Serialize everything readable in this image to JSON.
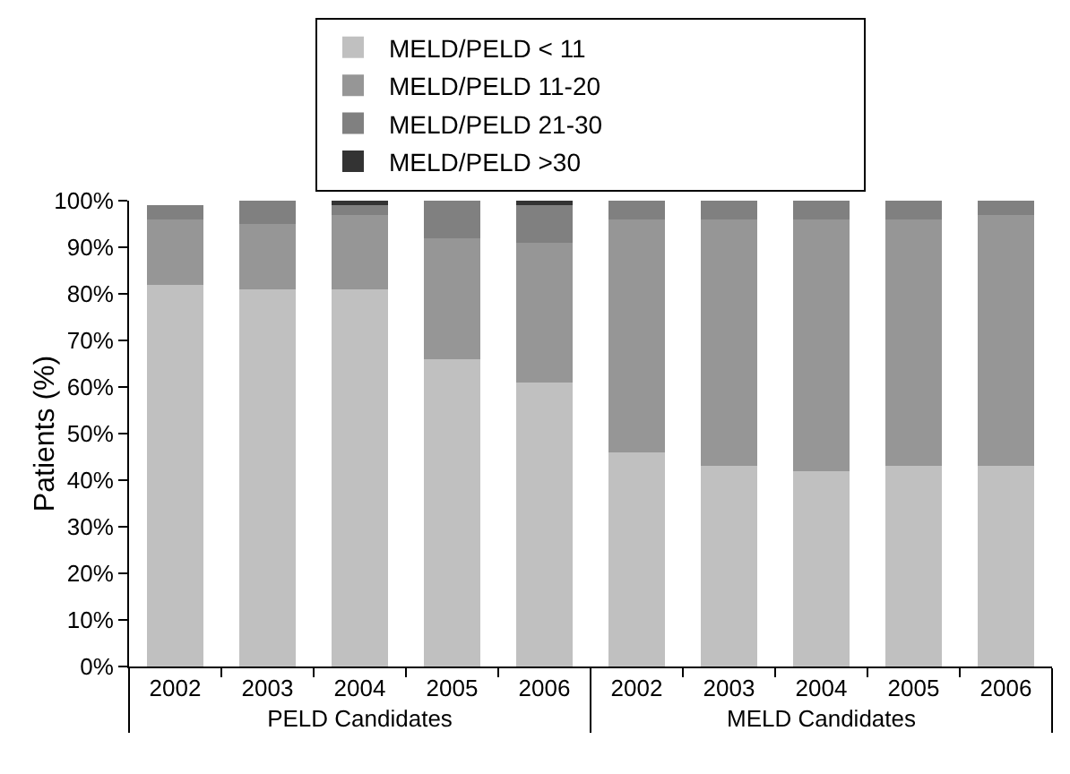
{
  "chart_data": {
    "type": "bar",
    "stacked": true,
    "ylabel": "Patients (%)",
    "categories": [
      "2002",
      "2003",
      "2004",
      "2005",
      "2006",
      "2002",
      "2003",
      "2004",
      "2005",
      "2006"
    ],
    "annotations": [
      "PELD Candidates",
      "MELD Candidates"
    ],
    "series": [
      {
        "name": "MELD/PELD < 11",
        "color": "#c0c0c0",
        "values": [
          82,
          81,
          81,
          66,
          61,
          46,
          43,
          42,
          43,
          43
        ]
      },
      {
        "name": "MELD/PELD 11-20",
        "color": "#969696",
        "values": [
          14,
          14,
          16,
          26,
          30,
          50,
          53,
          54,
          53,
          54
        ]
      },
      {
        "name": "MELD/PELD 21-30",
        "color": "#808080",
        "values": [
          3,
          5,
          2,
          8,
          8,
          4,
          4,
          4,
          4,
          3
        ]
      },
      {
        "name": "MELD/PELD >30",
        "color": "#333333",
        "values": [
          0,
          0,
          1,
          0,
          1,
          0,
          0,
          0,
          0,
          0
        ]
      }
    ],
    "ylim": [
      0,
      100
    ],
    "yticks": [
      {
        "value": 0,
        "label": "0%"
      },
      {
        "value": 10,
        "label": "10%"
      },
      {
        "value": 20,
        "label": "20%"
      },
      {
        "value": 30,
        "label": "30%"
      },
      {
        "value": 40,
        "label": "40%"
      },
      {
        "value": 50,
        "label": "50%"
      },
      {
        "value": 60,
        "label": "60%"
      },
      {
        "value": 70,
        "label": "70%"
      },
      {
        "value": 80,
        "label": "80%"
      },
      {
        "value": 90,
        "label": "90%"
      },
      {
        "value": 100,
        "label": "100%"
      }
    ],
    "grid": false,
    "legend": "top"
  }
}
